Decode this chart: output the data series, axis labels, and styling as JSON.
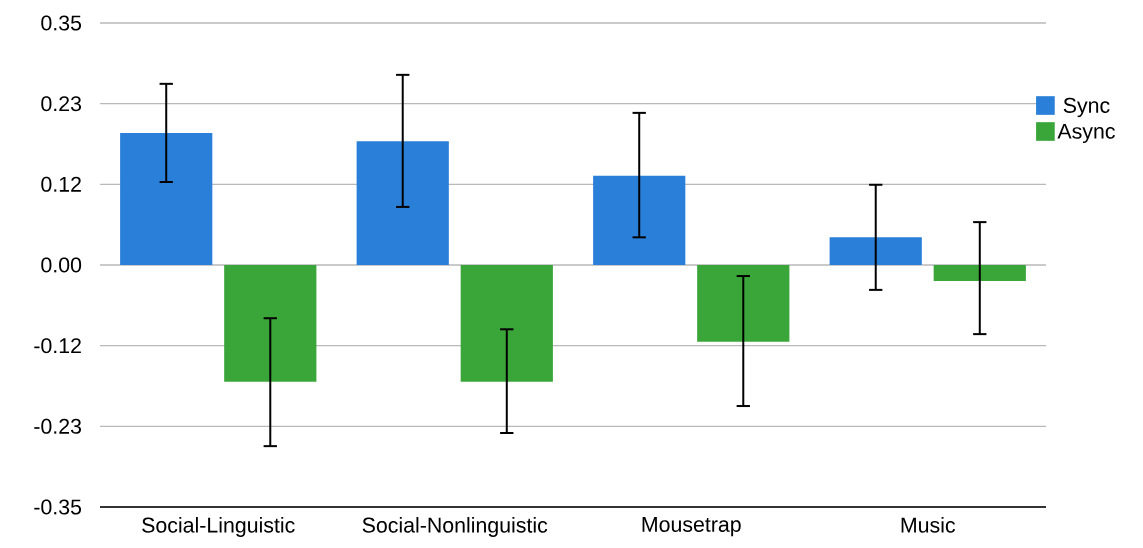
{
  "chart_data": {
    "type": "bar",
    "categories": [
      "Social-Linguistic",
      "Social-Nonlinguistic",
      "Mousetrap",
      "Music"
    ],
    "series": [
      {
        "name": "Sync",
        "color": "#2a80d8",
        "values": [
          0.191,
          0.179,
          0.129,
          0.04
        ],
        "errors": [
          [
            0.12,
            0.262
          ],
          [
            0.084,
            0.275
          ],
          [
            0.04,
            0.22
          ],
          [
            -0.036,
            0.116
          ]
        ]
      },
      {
        "name": "Async",
        "color": "#3aa63a",
        "values": [
          -0.169,
          -0.169,
          -0.111,
          -0.023
        ],
        "errors": [
          [
            -0.262,
            -0.077
          ],
          [
            -0.243,
            -0.093
          ],
          [
            -0.204,
            -0.016
          ],
          [
            -0.1,
            0.062
          ]
        ]
      }
    ],
    "ylim": [
      -0.35,
      0.35
    ],
    "yticks": [
      -0.35,
      {
        "value": -0.2333,
        "label": "-0.23"
      },
      {
        "value": -0.1167,
        "label": "-0.12"
      },
      {
        "value": 0,
        "label": "0.00"
      },
      {
        "value": 0.1167,
        "label": "0.12"
      },
      {
        "value": 0.2333,
        "label": "0.23"
      },
      0.35
    ],
    "grid": "y",
    "legend": "right"
  }
}
